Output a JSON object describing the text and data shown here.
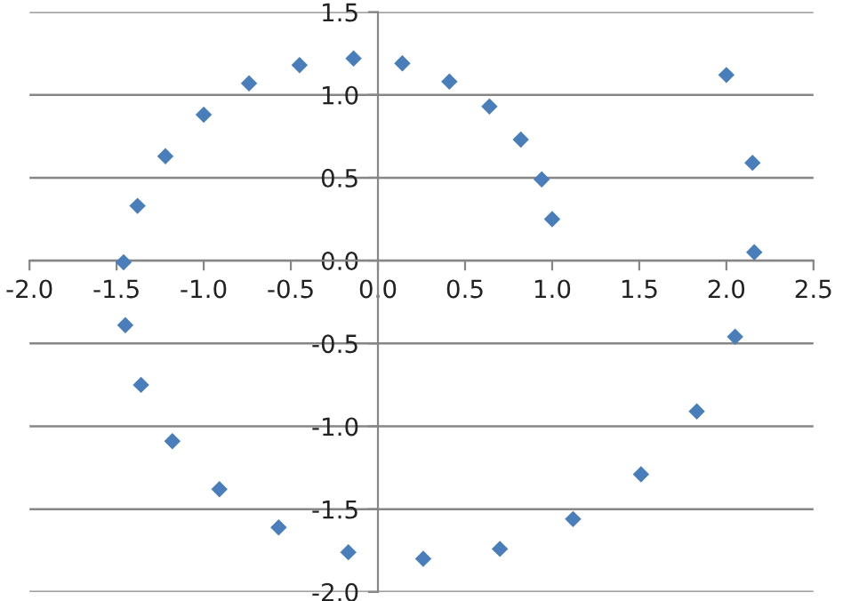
{
  "chart_data": {
    "type": "scatter",
    "marker": "diamond",
    "grid": "y",
    "xlim": [
      -2.0,
      2.5
    ],
    "ylim": [
      -2.0,
      1.5
    ],
    "xticks": [
      {
        "value": -2.0,
        "label": "-2.0"
      },
      {
        "value": -1.5,
        "label": "-1.5"
      },
      {
        "value": -1.0,
        "label": "-1.0"
      },
      {
        "value": -0.5,
        "label": "-0.5"
      },
      {
        "value": 0.0,
        "label": "0.0"
      },
      {
        "value": 0.5,
        "label": "0.5"
      },
      {
        "value": 1.0,
        "label": "1.0"
      },
      {
        "value": 1.5,
        "label": "1.5"
      },
      {
        "value": 2.0,
        "label": "2.0"
      },
      {
        "value": 2.5,
        "label": "2.5"
      }
    ],
    "yticks": [
      {
        "value": -2.0,
        "label": "-2.0"
      },
      {
        "value": -1.5,
        "label": "-1.5"
      },
      {
        "value": -1.0,
        "label": "-1.0"
      },
      {
        "value": -0.5,
        "label": "-0.5"
      },
      {
        "value": 0.0,
        "label": "0.0"
      },
      {
        "value": 0.5,
        "label": "0.5"
      },
      {
        "value": 1.0,
        "label": "1.0"
      },
      {
        "value": 1.5,
        "label": "1.5"
      }
    ],
    "series": [
      {
        "color": "#4a7ebb",
        "x": [
          -1.46,
          -1.38,
          -1.22,
          -1.0,
          -0.74,
          -0.45,
          -0.14,
          0.14,
          0.41,
          0.64,
          0.82,
          0.94,
          1.0,
          2.0,
          2.15,
          2.16,
          2.05,
          1.83,
          1.51,
          1.12,
          0.7,
          0.26,
          -0.17,
          -0.57,
          -0.91,
          -1.18,
          -1.36,
          -1.45
        ],
        "values": [
          -0.01,
          0.33,
          0.63,
          0.88,
          1.07,
          1.18,
          1.22,
          1.19,
          1.08,
          0.93,
          0.73,
          0.49,
          0.25,
          1.12,
          0.59,
          0.05,
          -0.46,
          -0.91,
          -1.29,
          -1.56,
          -1.74,
          -1.8,
          -1.76,
          -1.61,
          -1.38,
          -1.09,
          -0.75,
          -0.39
        ]
      }
    ]
  }
}
